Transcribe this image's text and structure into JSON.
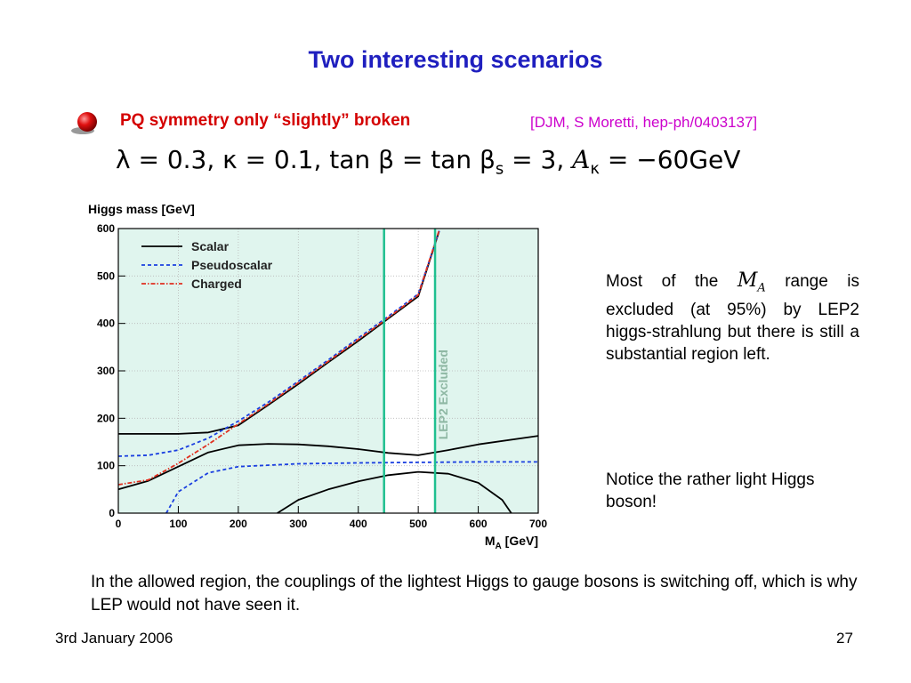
{
  "slide": {
    "title": "Two interesting scenarios",
    "bullet": "PQ symmetry only “slightly” broken",
    "reference": "[DJM, S Moretti, hep-ph/0403137]",
    "params": {
      "lambda": "λ = 0.3,",
      "kappa": "κ = 0.1,",
      "tan": "tan β = tan β",
      "sub_s": "s",
      "tan_val": "= 3,",
      "akappa": "A",
      "akappa_sub": "κ",
      "akappa_val": "= −60GeV"
    },
    "note1_pre": "Most of the",
    "note1_ma": "M",
    "note1_ma_sub": "A",
    "note1_post": "range is excluded (at 95%) by LEP2 higgs-strahlung but there is still a substantial region left.",
    "note2": "Notice the rather light Higgs boson!",
    "body": "In the allowed region, the couplings of the lightest Higgs to gauge bosons is switching off, which is why LEP would not have seen it.",
    "footer_date": "3rd January 2006",
    "footer_page": "27"
  },
  "chart_data": {
    "type": "line",
    "ylabel": "Higgs mass [GeV]",
    "xlabel": "M",
    "xlabel_sub": "A",
    "xlabel_unit": "[GeV]",
    "xlim": [
      0,
      700
    ],
    "ylim": [
      0,
      600
    ],
    "xticks": [
      0,
      100,
      200,
      300,
      400,
      500,
      600,
      700
    ],
    "yticks": [
      0,
      100,
      200,
      300,
      400,
      500,
      600
    ],
    "excluded_label": "LEP2 Excluded",
    "allowed_region": [
      443,
      528
    ],
    "excluded_color": "#e0f5ee",
    "boundary_color": "#20c090",
    "legend_position": "top-left",
    "legend": [
      {
        "name": "Scalar",
        "color": "#000000",
        "style": "solid"
      },
      {
        "name": "Pseudoscalar",
        "color": "#1a3fe0",
        "style": "dashed"
      },
      {
        "name": "Charged",
        "color": "#e03020",
        "style": "dashdot"
      }
    ],
    "series": [
      {
        "name": "Scalar",
        "role": "heavy",
        "color": "#000000",
        "style": "solid",
        "x": [
          0,
          100,
          150,
          200,
          250,
          300,
          350,
          400,
          450,
          500,
          535
        ],
        "y": [
          167,
          167,
          170,
          185,
          228,
          272,
          318,
          363,
          410,
          457,
          595
        ]
      },
      {
        "name": "Scalar",
        "role": "middle",
        "color": "#000000",
        "style": "solid",
        "x": [
          0,
          50,
          100,
          150,
          200,
          250,
          300,
          350,
          400,
          450,
          500,
          550,
          600,
          700
        ],
        "y": [
          50,
          68,
          98,
          128,
          143,
          146,
          145,
          141,
          135,
          127,
          122,
          133,
          145,
          163
        ]
      },
      {
        "name": "Scalar",
        "role": "light",
        "color": "#000000",
        "style": "solid",
        "x": [
          265,
          300,
          350,
          400,
          450,
          500,
          550,
          600,
          640,
          655
        ],
        "y": [
          0,
          28,
          50,
          67,
          80,
          87,
          83,
          64,
          28,
          0
        ]
      },
      {
        "name": "Pseudoscalar",
        "role": "heavy",
        "color": "#1a3fe0",
        "style": "dashed",
        "x": [
          0,
          50,
          100,
          150,
          200,
          250,
          300,
          350,
          400,
          450,
          500,
          535
        ],
        "y": [
          120,
          122,
          133,
          158,
          194,
          234,
          278,
          323,
          369,
          415,
          462,
          595
        ]
      },
      {
        "name": "Pseudoscalar",
        "role": "light",
        "color": "#1a3fe0",
        "style": "dashed",
        "x": [
          80,
          100,
          150,
          200,
          300,
          400,
          500,
          600,
          700
        ],
        "y": [
          0,
          45,
          85,
          98,
          104,
          106,
          107,
          108,
          108
        ]
      },
      {
        "name": "Charged",
        "color": "#e03020",
        "style": "dashdot",
        "x": [
          0,
          50,
          100,
          150,
          200,
          250,
          300,
          350,
          400,
          450,
          500,
          535
        ],
        "y": [
          60,
          70,
          105,
          145,
          188,
          230,
          275,
          320,
          366,
          412,
          460,
          597
        ]
      }
    ]
  }
}
